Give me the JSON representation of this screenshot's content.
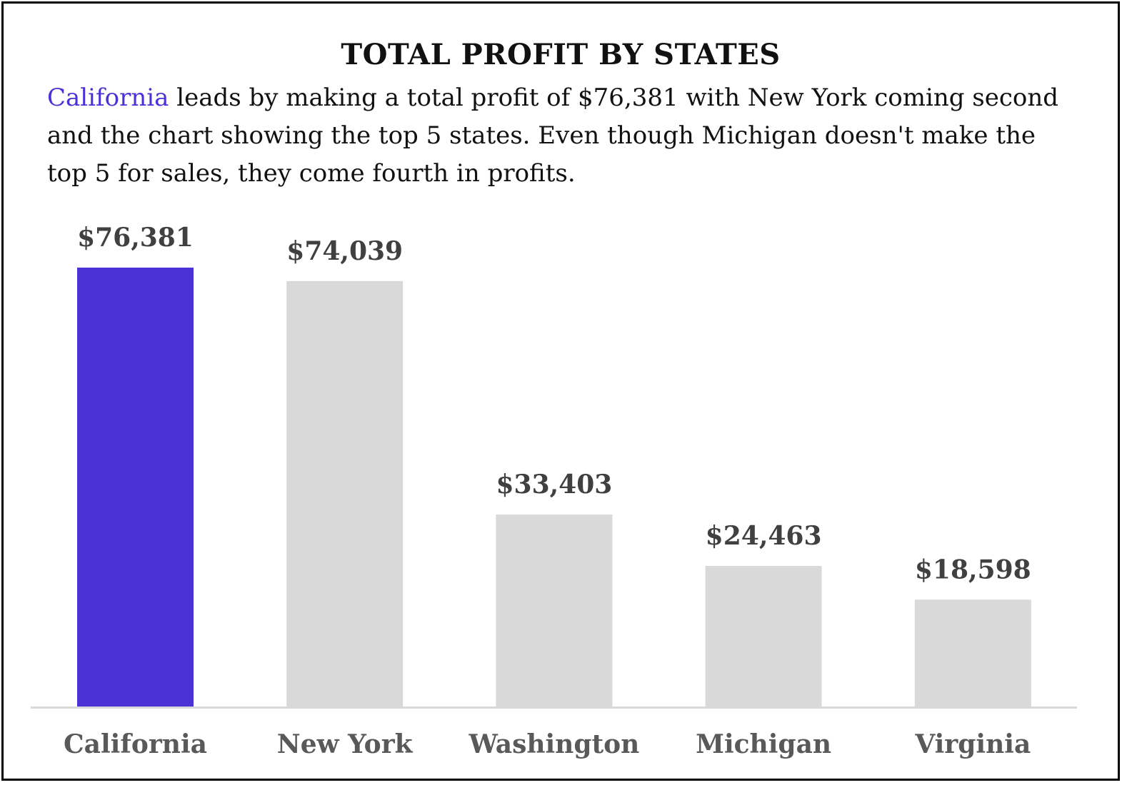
{
  "chart_data": {
    "type": "bar",
    "title": "TOTAL PROFIT BY STATES",
    "subtitle": {
      "highlight": "California",
      "text": " leads by making a total profit of $76,381 with New York coming second and the chart showing the top 5 states. Even though Michigan doesn't make the top 5 for sales, they come fourth in profits."
    },
    "categories": [
      "California",
      "New York",
      "Washington",
      "Michigan",
      "Virginia"
    ],
    "values": [
      76381,
      74039,
      33403,
      24463,
      18598
    ],
    "data_labels": [
      "$76,381",
      "$74,039",
      "$33,403",
      "$24,463",
      "$18,598"
    ],
    "highlight_index": 0,
    "xlabel": "",
    "ylabel": "",
    "ylim": [
      0,
      76381
    ],
    "grid": false,
    "legend": "none"
  },
  "colors": {
    "highlight": "#4a33d6",
    "default": "#d9d9d9",
    "axis": "#d9d9d9"
  }
}
